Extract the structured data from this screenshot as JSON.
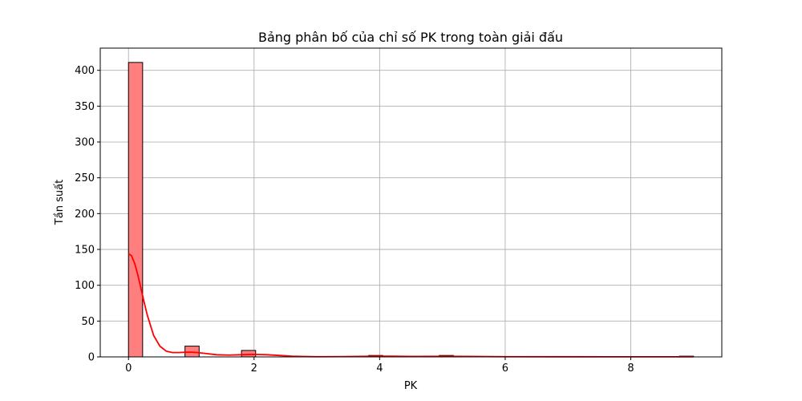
{
  "chart_data": {
    "type": "bar",
    "title": "Bảng phân bố của chỉ số PK trong toàn giải đấu",
    "xlabel": "PK",
    "ylabel": "Tần suất",
    "xlim": [
      -0.45,
      9.45
    ],
    "ylim": [
      0,
      431
    ],
    "x_ticks": [
      0,
      2,
      4,
      6,
      8
    ],
    "y_ticks": [
      0,
      50,
      100,
      150,
      200,
      250,
      300,
      350,
      400
    ],
    "grid": true,
    "bin_width": 0.225,
    "bins": [
      {
        "x0": 0.0,
        "count": 411
      },
      {
        "x0": 0.9,
        "count": 15
      },
      {
        "x0": 1.8,
        "count": 9
      },
      {
        "x0": 3.825,
        "count": 2
      },
      {
        "x0": 4.95,
        "count": 2
      },
      {
        "x0": 8.775,
        "count": 1
      }
    ],
    "kde": {
      "x": [
        0,
        0.05,
        0.1,
        0.15,
        0.2,
        0.25,
        0.3,
        0.4,
        0.5,
        0.6,
        0.7,
        0.8,
        0.9,
        1.0,
        1.1,
        1.2,
        1.4,
        1.6,
        1.8,
        2.0,
        2.2,
        2.4,
        2.6,
        2.8,
        3.0,
        3.4,
        3.8,
        4.0,
        4.2,
        4.6,
        5.0,
        5.4,
        6.0,
        7.0,
        8.0,
        9.0
      ],
      "y": [
        144,
        141,
        130,
        114,
        95,
        76,
        58,
        30,
        15,
        8,
        6,
        6,
        6.5,
        6.5,
        6,
        5,
        3,
        2.5,
        3,
        3.5,
        3,
        2,
        1,
        0.5,
        0.3,
        0.4,
        0.8,
        1,
        0.9,
        0.6,
        0.8,
        0.6,
        0.3,
        0.2,
        0.1,
        0.1
      ]
    },
    "colors": {
      "bar_fill": "#ff7f7f",
      "bar_edge": "#000000",
      "kde_line": "#ff0000",
      "grid": "#b0b0b0"
    }
  }
}
